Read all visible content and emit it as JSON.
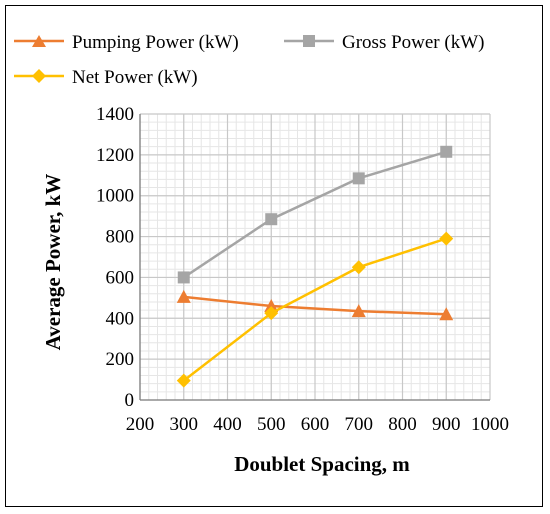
{
  "chart_data": {
    "type": "line",
    "title": "",
    "xlabel": "Doublet Spacing, m",
    "ylabel": "Average Power, kW",
    "xlim": [
      200,
      1000
    ],
    "ylim": [
      0,
      1400
    ],
    "x_ticks": [
      200,
      300,
      400,
      500,
      600,
      700,
      800,
      900,
      1000
    ],
    "y_ticks": [
      0,
      200,
      400,
      600,
      800,
      1000,
      1200,
      1400
    ],
    "grid": true,
    "legend_position": "top",
    "series": [
      {
        "name": "Pumping Power (kW)",
        "color": "#ED7D31",
        "marker": "triangle",
        "x": [
          300,
          500,
          700,
          900
        ],
        "y": [
          505,
          460,
          435,
          420
        ]
      },
      {
        "name": "Gross Power (kW)",
        "color": "#A5A5A5",
        "marker": "square",
        "x": [
          300,
          500,
          700,
          900
        ],
        "y": [
          600,
          885,
          1085,
          1215
        ]
      },
      {
        "name": "Net Power (kW)",
        "color": "#FFC000",
        "marker": "diamond",
        "x": [
          300,
          500,
          700,
          900
        ],
        "y": [
          95,
          425,
          650,
          790
        ]
      }
    ]
  }
}
